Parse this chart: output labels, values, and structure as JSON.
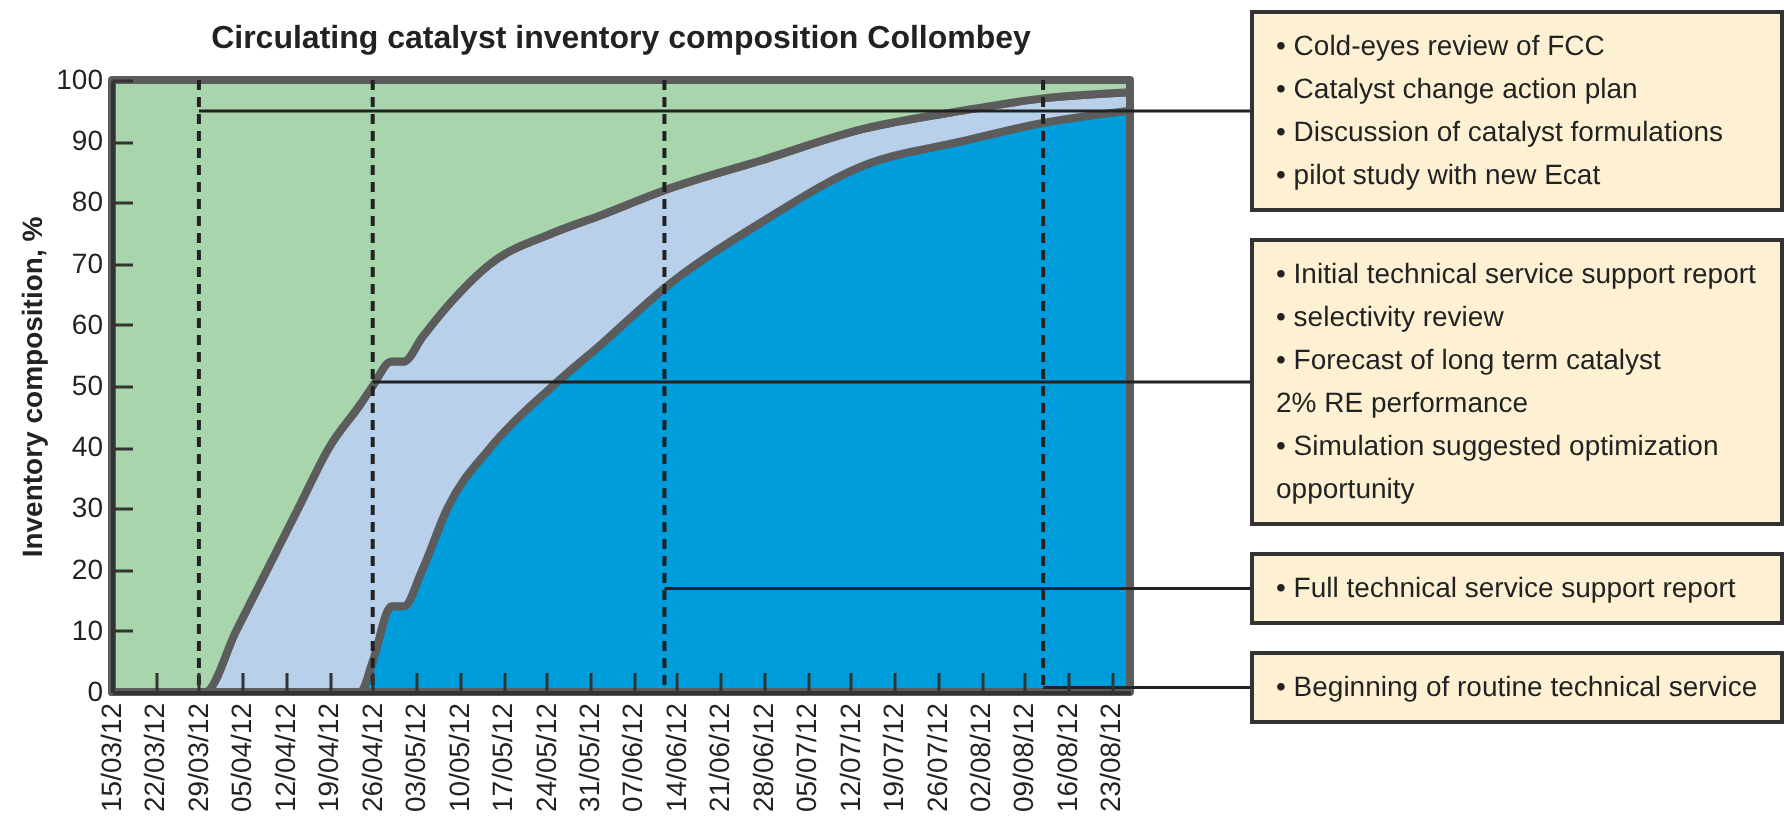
{
  "chart_data": {
    "type": "area",
    "title": "Circulating catalyst inventory composition Collombey",
    "ylabel": "Inventory composition, %",
    "x": [
      "--03-15",
      "--03-30",
      "--04-04",
      "--04-09",
      "--04-14",
      "--04-19",
      "--04-24",
      "--04-26",
      "--04-29",
      "--05-01",
      "--05-04",
      "--05-08",
      "--05-15",
      "--05-25",
      "--06-02",
      "--06-12",
      "--06-28",
      "--07-14",
      "--07-30",
      "--08-12",
      "--08-26"
    ],
    "series": [
      {
        "color": "#009ddc",
        "values": [
          0,
          0,
          0,
          0,
          0,
          0,
          0,
          5,
          14,
          14,
          20,
          30,
          40,
          50,
          57,
          66,
          77,
          86,
          90,
          93,
          95
        ]
      },
      {
        "color": "#b9d0ea",
        "values": [
          0,
          0,
          10,
          20,
          30,
          40,
          47,
          45,
          40,
          40,
          38,
          33,
          30,
          25,
          21,
          16,
          10,
          6,
          5,
          4,
          3
        ]
      },
      {
        "color": "#a9d5ad",
        "values": [
          100,
          100,
          90,
          80,
          70,
          60,
          53,
          50,
          46,
          46,
          42,
          37,
          30,
          25,
          22,
          18,
          13,
          8,
          5,
          3,
          2
        ]
      }
    ],
    "stacked": true,
    "grid": false,
    "legend": false,
    "xlim": [
      "--03-15",
      "--08-26"
    ],
    "xticks": [
      {
        "value": "--03-15",
        "label": "15/03/12"
      },
      {
        "value": "--03-22",
        "label": "22/03/12"
      },
      {
        "value": "--03-29",
        "label": "29/03/12"
      },
      {
        "value": "--04-05",
        "label": "05/04/12"
      },
      {
        "value": "--04-12",
        "label": "12/04/12"
      },
      {
        "value": "--04-19",
        "label": "19/04/12"
      },
      {
        "value": "--04-26",
        "label": "26/04/12"
      },
      {
        "value": "--05-03",
        "label": "03/05/12"
      },
      {
        "value": "--05-10",
        "label": "10/05/12"
      },
      {
        "value": "--05-17",
        "label": "17/05/12"
      },
      {
        "value": "--05-24",
        "label": "24/05/12"
      },
      {
        "value": "--05-31",
        "label": "31/05/12"
      },
      {
        "value": "--06-07",
        "label": "07/06/12"
      },
      {
        "value": "--06-14",
        "label": "14/06/12"
      },
      {
        "value": "--06-21",
        "label": "21/06/12"
      },
      {
        "value": "--06-28",
        "label": "28/06/12"
      },
      {
        "value": "--07-05",
        "label": "05/07/12"
      },
      {
        "value": "--07-12",
        "label": "12/07/12"
      },
      {
        "value": "--07-19",
        "label": "19/07/12"
      },
      {
        "value": "--07-26",
        "label": "26/07/12"
      },
      {
        "value": "--08-02",
        "label": "02/08/12"
      },
      {
        "value": "--08-09",
        "label": "09/08/12"
      },
      {
        "value": "--08-16",
        "label": "16/08/12"
      },
      {
        "value": "--08-23",
        "label": "23/08/12"
      }
    ],
    "ylim": [
      0,
      100
    ],
    "yticks": [
      0,
      10,
      20,
      30,
      40,
      50,
      60,
      70,
      80,
      90,
      100
    ],
    "ref_lines": [
      {
        "axis": "x",
        "value": "--03-29",
        "line_style": "dashed",
        "label": "• Cold-eyes review of FCC\n• Catalyst change action plan\n• Discussion of catalyst formulations\n• pilot study with new Ecat"
      },
      {
        "axis": "x",
        "value": "--04-26",
        "line_style": "dashed",
        "label": "• Initial technical service support report\n• selectivity review\n• Forecast of long term catalyst\n2% RE performance\n• Simulation suggested optimization\nopportunity"
      },
      {
        "axis": "x",
        "value": "--06-12",
        "line_style": "dashed",
        "label": "• Full technical service support report"
      },
      {
        "axis": "x",
        "value": "--08-12",
        "line_style": "dashed",
        "label": "• Beginning of routine technical service"
      }
    ]
  }
}
